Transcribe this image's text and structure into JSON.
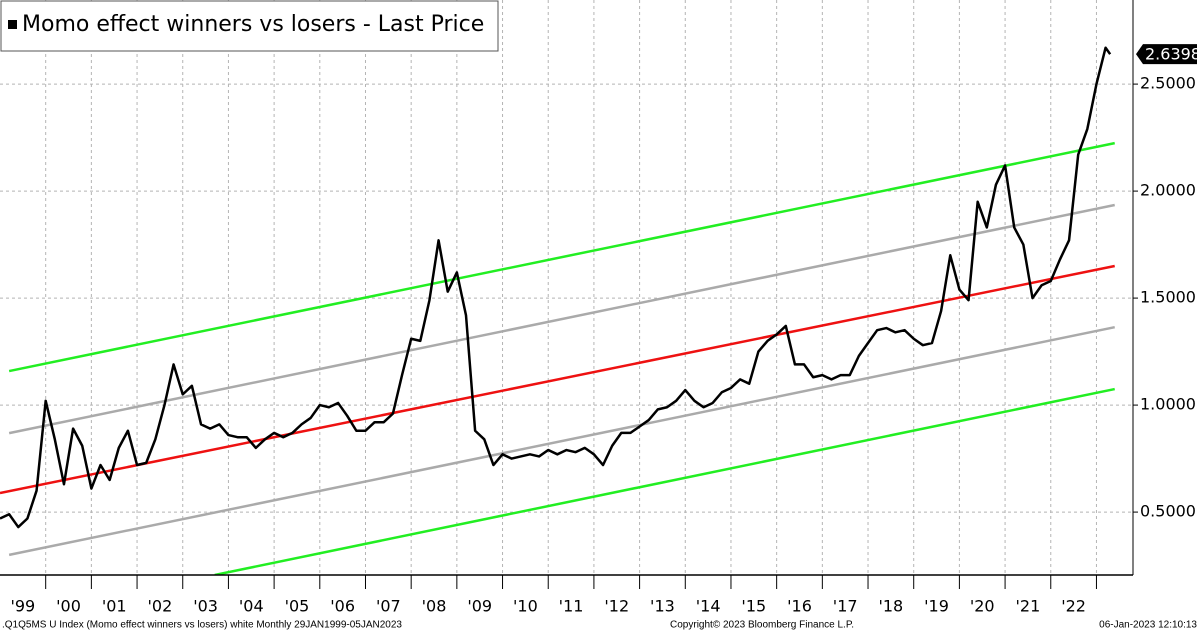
{
  "chart_data": {
    "type": "line",
    "footer_left": ".Q1Q5MS U Index (Momo effect winners vs losers) white  Monthly 29JAN1999-05JAN2023",
    "footer_center": "Copyright© 2023 Bloomberg Finance L.P.",
    "footer_right": "06-Jan-2023 12:10:13",
    "xlim": [
      1999.0,
      2023.8
    ],
    "ylim": [
      0.206,
      2.893
    ],
    "yticks": [
      {
        "value": 0.5,
        "label": "0.5000"
      },
      {
        "value": 1.0,
        "label": "1.0000"
      },
      {
        "value": 1.5,
        "label": "1.5000"
      },
      {
        "value": 2.0,
        "label": "2.0000"
      },
      {
        "value": 2.5,
        "label": "2.5000"
      }
    ],
    "xticks": [
      {
        "value": 1999.5,
        "label": "'99"
      },
      {
        "value": 2000.5,
        "label": "'00"
      },
      {
        "value": 2001.5,
        "label": "'01"
      },
      {
        "value": 2002.5,
        "label": "'02"
      },
      {
        "value": 2003.5,
        "label": "'03"
      },
      {
        "value": 2004.5,
        "label": "'04"
      },
      {
        "value": 2005.5,
        "label": "'05"
      },
      {
        "value": 2006.5,
        "label": "'06"
      },
      {
        "value": 2007.5,
        "label": "'07"
      },
      {
        "value": 2008.5,
        "label": "'08"
      },
      {
        "value": 2009.5,
        "label": "'09"
      },
      {
        "value": 2010.5,
        "label": "'10"
      },
      {
        "value": 2011.5,
        "label": "'11"
      },
      {
        "value": 2012.5,
        "label": "'12"
      },
      {
        "value": 2013.5,
        "label": "'13"
      },
      {
        "value": 2014.5,
        "label": "'14"
      },
      {
        "value": 2015.5,
        "label": "'15"
      },
      {
        "value": 2016.5,
        "label": "'16"
      },
      {
        "value": 2017.5,
        "label": "'17"
      },
      {
        "value": 2018.5,
        "label": "'18"
      },
      {
        "value": 2019.5,
        "label": "'19"
      },
      {
        "value": 2020.5,
        "label": "'20"
      },
      {
        "value": 2021.5,
        "label": "'21"
      },
      {
        "value": 2022.5,
        "label": "'22"
      }
    ],
    "xgrid": [
      2000,
      2001,
      2002,
      2003,
      2004,
      2005,
      2006,
      2007,
      2008,
      2009,
      2010,
      2011,
      2012,
      2013,
      2014,
      2015,
      2016,
      2017,
      2018,
      2019,
      2020,
      2021,
      2022,
      2023
    ],
    "grid": true,
    "series": [
      {
        "name": "Momo effect winners vs losers - Last Price",
        "color": "#000000",
        "x": [
          1999.0,
          1999.2,
          1999.4,
          1999.6,
          1999.8,
          2000.0,
          2000.2,
          2000.4,
          2000.6,
          2000.8,
          2001.0,
          2001.2,
          2001.4,
          2001.6,
          2001.8,
          2002.0,
          2002.2,
          2002.4,
          2002.6,
          2002.8,
          2003.0,
          2003.2,
          2003.4,
          2003.6,
          2003.8,
          2004.0,
          2004.2,
          2004.4,
          2004.6,
          2004.8,
          2005.0,
          2005.2,
          2005.4,
          2005.6,
          2005.8,
          2006.0,
          2006.2,
          2006.4,
          2006.6,
          2006.8,
          2007.0,
          2007.2,
          2007.4,
          2007.6,
          2007.8,
          2008.0,
          2008.2,
          2008.4,
          2008.6,
          2008.8,
          2009.0,
          2009.2,
          2009.4,
          2009.6,
          2009.8,
          2010.0,
          2010.2,
          2010.4,
          2010.6,
          2010.8,
          2011.0,
          2011.2,
          2011.4,
          2011.6,
          2011.8,
          2012.0,
          2012.2,
          2012.4,
          2012.6,
          2012.8,
          2013.0,
          2013.2,
          2013.4,
          2013.6,
          2013.8,
          2014.0,
          2014.2,
          2014.4,
          2014.6,
          2014.8,
          2015.0,
          2015.2,
          2015.4,
          2015.6,
          2015.8,
          2016.0,
          2016.2,
          2016.4,
          2016.6,
          2016.8,
          2017.0,
          2017.2,
          2017.4,
          2017.6,
          2017.8,
          2018.0,
          2018.2,
          2018.4,
          2018.6,
          2018.8,
          2019.0,
          2019.2,
          2019.4,
          2019.6,
          2019.8,
          2020.0,
          2020.2,
          2020.4,
          2020.6,
          2020.8,
          2021.0,
          2021.2,
          2021.4,
          2021.6,
          2021.8,
          2022.0,
          2022.2,
          2022.4,
          2022.6,
          2022.8,
          2023.0,
          2023.2,
          2023.3
        ],
        "values": [
          0.47,
          0.49,
          0.43,
          0.47,
          0.6,
          1.02,
          0.84,
          0.63,
          0.89,
          0.81,
          0.61,
          0.72,
          0.65,
          0.8,
          0.88,
          0.72,
          0.73,
          0.84,
          1.0,
          1.19,
          1.05,
          1.09,
          0.91,
          0.89,
          0.91,
          0.86,
          0.85,
          0.85,
          0.8,
          0.84,
          0.87,
          0.85,
          0.87,
          0.91,
          0.94,
          1.0,
          0.99,
          1.01,
          0.95,
          0.88,
          0.88,
          0.92,
          0.92,
          0.96,
          1.14,
          1.31,
          1.3,
          1.49,
          1.77,
          1.53,
          1.62,
          1.42,
          0.88,
          0.84,
          0.72,
          0.77,
          0.75,
          0.76,
          0.77,
          0.76,
          0.79,
          0.77,
          0.79,
          0.78,
          0.8,
          0.77,
          0.72,
          0.81,
          0.87,
          0.87,
          0.9,
          0.93,
          0.98,
          0.99,
          1.02,
          1.07,
          1.02,
          0.99,
          1.01,
          1.06,
          1.08,
          1.12,
          1.1,
          1.25,
          1.3,
          1.33,
          1.37,
          1.19,
          1.19,
          1.13,
          1.14,
          1.12,
          1.14,
          1.14,
          1.23,
          1.29,
          1.35,
          1.36,
          1.34,
          1.35,
          1.31,
          1.28,
          1.29,
          1.44,
          1.7,
          1.54,
          1.49,
          1.95,
          1.83,
          2.03,
          2.12,
          1.83,
          1.75,
          1.5,
          1.56,
          1.58,
          1.68,
          1.77,
          2.17,
          2.29,
          2.5,
          2.67,
          2.6398
        ]
      }
    ],
    "reference_lines": [
      {
        "color": "#22ee22",
        "x": [
          1999.2,
          2023.4
        ],
        "values": [
          1.159,
          2.224
        ]
      },
      {
        "color": "#aaaaaa",
        "x": [
          1999.2,
          2023.4
        ],
        "values": [
          0.869,
          1.935
        ]
      },
      {
        "color": "#ee1111",
        "x": [
          1999.0,
          2023.4
        ],
        "values": [
          0.589,
          1.65
        ]
      },
      {
        "color": "#aaaaaa",
        "x": [
          1999.2,
          2023.4
        ],
        "values": [
          0.3,
          1.364
        ]
      },
      {
        "color": "#22ee22",
        "x": [
          2003.7,
          2023.4
        ],
        "values": [
          0.206,
          1.075
        ]
      }
    ]
  }
}
